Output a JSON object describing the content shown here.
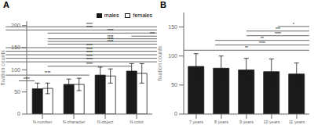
{
  "chart_data": [
    {
      "type": "bar",
      "title": "A",
      "categories": [
        "N-number",
        "N-character",
        "N-object",
        "N-color"
      ],
      "series": [
        {
          "name": "males",
          "color": "#1a1a1a",
          "values": [
            57,
            67,
            88,
            97
          ],
          "errors": [
            13,
            12,
            18,
            17
          ]
        },
        {
          "name": "females",
          "color": "#ffffff",
          "values": [
            58,
            67,
            86,
            92
          ],
          "errors": [
            12,
            14,
            16,
            22
          ]
        }
      ],
      "ylabel": "fixation counts",
      "ylim": [
        0,
        210
      ],
      "yticks": [
        0,
        50,
        100,
        150,
        200
      ],
      "legend": "upper right",
      "grid": false,
      "annotations": [
        {
          "text": "****",
          "x1": -0.19,
          "x2": 0.19,
          "y": 75
        },
        {
          "text": "****",
          "x1": -0.5,
          "x2": 1.5,
          "y": 88
        },
        {
          "text": "****",
          "x1": -0.5,
          "x2": 3.5,
          "y": 118
        },
        {
          "text": "****",
          "x1": -0.5,
          "x2": 3.5,
          "y": 126
        },
        {
          "text": "****",
          "x1": -0.5,
          "x2": 3.5,
          "y": 134
        },
        {
          "text": "****",
          "x1": -0.5,
          "x2": 3.5,
          "y": 142
        },
        {
          "text": "****",
          "x1": -0.5,
          "x2": 3.5,
          "y": 150
        },
        {
          "text": "****",
          "x1": 0.5,
          "x2": 3.5,
          "y": 158
        },
        {
          "text": "****",
          "x1": 0.5,
          "x2": 3.5,
          "y": 164
        },
        {
          "text": "****",
          "x1": 0.5,
          "x2": 3.5,
          "y": 170
        },
        {
          "text": "***",
          "x1": 2.5,
          "x2": 3.5,
          "y": 176
        },
        {
          "text": "****",
          "x1": 0.5,
          "x2": 2.5,
          "y": 108
        },
        {
          "text": "****",
          "x1": 0.5,
          "x2": 3.5,
          "y": 183
        },
        {
          "text": "****",
          "x1": -0.5,
          "x2": 3.5,
          "y": 190
        },
        {
          "text": "****",
          "x1": -0.5,
          "x2": 3.5,
          "y": 197
        }
      ]
    },
    {
      "type": "bar",
      "title": "B",
      "categories": [
        "7 years",
        "8 years",
        "9 years",
        "10 years",
        "11 years"
      ],
      "values": [
        82,
        79,
        76,
        73,
        69
      ],
      "errors": [
        22,
        21,
        20,
        22,
        19
      ],
      "color": "#1a1a1a",
      "ylabel": "fixation counts",
      "ylim": [
        0,
        175
      ],
      "yticks": [
        0,
        50,
        100,
        150
      ],
      "grid": false,
      "annotations": [
        {
          "text": "**",
          "x1": 0,
          "x2": 4,
          "y": 110
        },
        {
          "text": "****",
          "x1": 1,
          "x2": 4,
          "y": 119
        },
        {
          "text": "**",
          "x1": 1,
          "x2": 4,
          "y": 127
        },
        {
          "text": "****",
          "x1": 2,
          "x2": 4,
          "y": 135
        },
        {
          "text": "***",
          "x1": 2,
          "x2": 4,
          "y": 143
        },
        {
          "text": "*",
          "x1": 3,
          "x2": 4,
          "y": 151
        }
      ]
    }
  ]
}
